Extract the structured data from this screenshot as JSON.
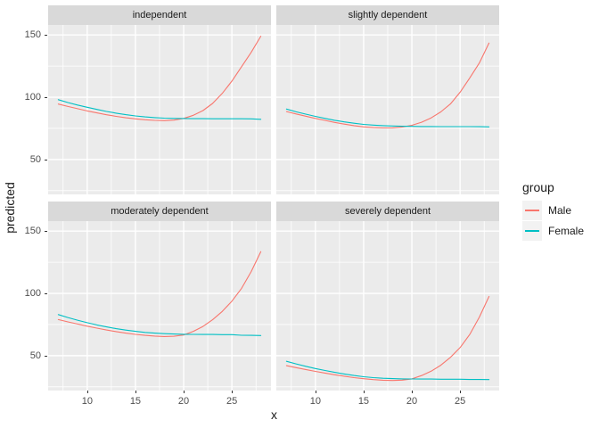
{
  "chart_data": {
    "type": "line",
    "title": "",
    "xlabel": "x",
    "ylabel": "predicted",
    "xlim": [
      5.95,
      29.05
    ],
    "ylim": [
      22,
      158
    ],
    "x_ticks": [
      10,
      15,
      20,
      25
    ],
    "y_ticks": [
      50,
      100,
      150
    ],
    "x_minor_ticks": [
      7.5,
      12.5,
      17.5,
      22.5,
      27.5
    ],
    "y_minor_ticks": [
      25,
      75,
      125
    ],
    "grid": "major and minor white gridlines on grey panel",
    "legend_position": "right",
    "legend": {
      "title": "group",
      "items": [
        {
          "label": "Male",
          "color": "#F8766D"
        },
        {
          "label": "Female",
          "color": "#00BFC4"
        }
      ]
    },
    "x": [
      7,
      8,
      9,
      10,
      11,
      12,
      13,
      14,
      15,
      16,
      17,
      18,
      19,
      20,
      21,
      22,
      23,
      24,
      25,
      26,
      27,
      28
    ],
    "facets": [
      {
        "label": "independent",
        "series": [
          {
            "name": "Male",
            "color": "#F8766D",
            "y": [
              94.5,
              92.6,
              90.8,
              89,
              87.4,
              85.9,
              84.6,
              83.5,
              82.6,
              81.9,
              81.4,
              81.2,
              81.6,
              83,
              85.5,
              89.3,
              95,
              103,
              113,
              124.5,
              136,
              149
            ]
          },
          {
            "name": "Female",
            "color": "#00BFC4",
            "y": [
              98,
              95.7,
              93.7,
              91.9,
              90.2,
              88.6,
              87.2,
              86,
              85,
              84.2,
              83.6,
              83.2,
              83,
              82.9,
              82.8,
              82.8,
              82.7,
              82.7,
              82.7,
              82.7,
              82.6,
              82.3
            ]
          }
        ]
      },
      {
        "label": "slightly dependent",
        "series": [
          {
            "name": "Male",
            "color": "#F8766D",
            "y": [
              88.5,
              86.6,
              84.8,
              83,
              81.4,
              79.8,
              78.4,
              77.2,
              76.2,
              75.6,
              75.3,
              75.4,
              76.1,
              77.5,
              79.9,
              83.4,
              88.2,
              94.6,
              104,
              115.5,
              127.5,
              143.5
            ]
          },
          {
            "name": "Female",
            "color": "#00BFC4",
            "y": [
              90.5,
              88.3,
              86.4,
              84.6,
              83,
              81.5,
              80.2,
              79.1,
              78.2,
              77.6,
              77.2,
              76.9,
              76.7,
              76.6,
              76.5,
              76.5,
              76.4,
              76.4,
              76.4,
              76.4,
              76.3,
              76.2
            ]
          }
        ]
      },
      {
        "label": "moderately dependent",
        "series": [
          {
            "name": "Male",
            "color": "#F8766D",
            "y": [
              79,
              77.1,
              75.4,
              73.7,
              72.1,
              70.6,
              69.3,
              68.1,
              67.1,
              66.3,
              65.7,
              65.4,
              65.6,
              66.6,
              69.5,
              73.5,
              78.8,
              85.5,
              93.8,
              104,
              117.5,
              133.5
            ]
          },
          {
            "name": "Female",
            "color": "#00BFC4",
            "y": [
              83,
              80.6,
              78.5,
              76.5,
              74.7,
              73.1,
              71.7,
              70.5,
              69.5,
              68.7,
              68.1,
              67.7,
              67.4,
              67.2,
              67.1,
              67,
              67,
              66.9,
              66.9,
              66.4,
              66.3,
              66.2
            ]
          }
        ]
      },
      {
        "label": "severely dependent",
        "series": [
          {
            "name": "Male",
            "color": "#F8766D",
            "y": [
              42,
              40.4,
              38.9,
              37.4,
              36,
              34.7,
              33.5,
              32.4,
              31.5,
              30.8,
              30.3,
              30.1,
              30.4,
              31.4,
              34,
              37.5,
              42.3,
              48.6,
              56.5,
              67,
              81,
              97.5
            ]
          },
          {
            "name": "Female",
            "color": "#00BFC4",
            "y": [
              45.5,
              43.4,
              41.5,
              39.7,
              38.1,
              36.6,
              35.3,
              34.1,
              33.1,
              32.4,
              31.9,
              31.6,
              31.4,
              31.3,
              31.2,
              31.2,
              31.1,
              31.1,
              31.1,
              30.9,
              30.9,
              30.8
            ]
          }
        ]
      }
    ],
    "theme_colors": {
      "panel_background": "#EBEBEB",
      "strip_background": "#D9D9D9",
      "gridline": "#FFFFFF",
      "axis_text": "#4D4D4D",
      "text": "#1A1A1A",
      "legend_key_background": "#F2F2F2"
    }
  }
}
